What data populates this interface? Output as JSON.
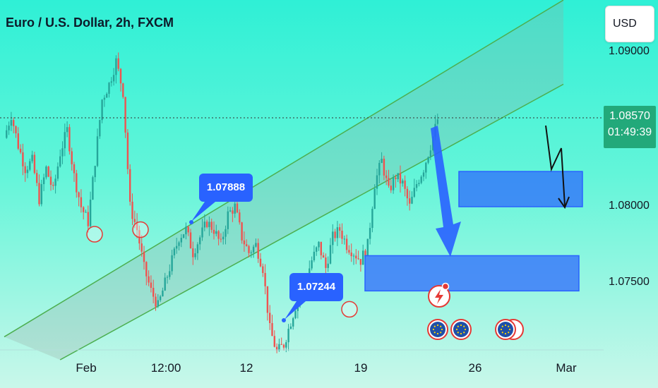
{
  "header": {
    "title": "Euro / U.S. Dollar, 2h, FXCM",
    "currency_label": "USD"
  },
  "price_scale": {
    "ticks": [
      "1.09000",
      "1.08000",
      "1.07500"
    ],
    "current_price": "1.08570",
    "countdown": "01:49:39"
  },
  "time_axis": {
    "ticks": [
      "Feb",
      "12:00",
      "12",
      "19",
      "26",
      "Mar"
    ]
  },
  "annotations": {
    "callout_high": "1.07888",
    "callout_low": "1.07244"
  },
  "colors": {
    "up": "#26a69a",
    "down": "#ef5350",
    "channel": "#4caf50",
    "zone": "#2962ff",
    "price_badge": "#22a97a"
  },
  "icons": [
    "event-flash-icon",
    "eu-flag-icon",
    "eu-flag-icon",
    "eu-flag-icon"
  ],
  "chart_data": {
    "type": "candlestick",
    "symbol": "EUR/USD",
    "timeframe": "2h",
    "ylim": [
      1.07,
      1.0925
    ],
    "close_path": [
      {
        "t": 0,
        "c": 1.0845
      },
      {
        "t": 1,
        "c": 1.086
      },
      {
        "t": 2,
        "c": 1.084
      },
      {
        "t": 3,
        "c": 1.0825
      },
      {
        "t": 4,
        "c": 1.083
      },
      {
        "t": 5,
        "c": 1.0805
      },
      {
        "t": 6,
        "c": 1.0825
      },
      {
        "t": 7,
        "c": 1.081
      },
      {
        "t": 8,
        "c": 1.0835
      },
      {
        "t": 9,
        "c": 1.085
      },
      {
        "t": 10,
        "c": 1.082
      },
      {
        "t": 11,
        "c": 1.08
      },
      {
        "t": 12,
        "c": 1.079
      },
      {
        "t": 13,
        "c": 1.083
      },
      {
        "t": 14,
        "c": 1.087
      },
      {
        "t": 15,
        "c": 1.088
      },
      {
        "t": 16,
        "c": 1.0895
      },
      {
        "t": 17,
        "c": 1.0875
      },
      {
        "t": 18,
        "c": 1.08
      },
      {
        "t": 19,
        "c": 1.0785
      },
      {
        "t": 20,
        "c": 1.076
      },
      {
        "t": 21,
        "c": 1.0745
      },
      {
        "t": 22,
        "c": 1.0735
      },
      {
        "t": 23,
        "c": 1.075
      },
      {
        "t": 24,
        "c": 1.0765
      },
      {
        "t": 25,
        "c": 1.078
      },
      {
        "t": 26,
        "c": 1.0785
      },
      {
        "t": 27,
        "c": 1.077
      },
      {
        "t": 28,
        "c": 1.078
      },
      {
        "t": 29,
        "c": 1.079
      },
      {
        "t": 30,
        "c": 1.0785
      },
      {
        "t": 31,
        "c": 1.0775
      },
      {
        "t": 32,
        "c": 1.0795
      },
      {
        "t": 33,
        "c": 1.08
      },
      {
        "t": 34,
        "c": 1.078
      },
      {
        "t": 35,
        "c": 1.077
      },
      {
        "t": 36,
        "c": 1.0775
      },
      {
        "t": 37,
        "c": 1.076
      },
      {
        "t": 38,
        "c": 1.072
      },
      {
        "t": 39,
        "c": 1.0705
      },
      {
        "t": 40,
        "c": 1.071
      },
      {
        "t": 41,
        "c": 1.0725
      },
      {
        "t": 42,
        "c": 1.074
      },
      {
        "t": 43,
        "c": 1.075
      },
      {
        "t": 44,
        "c": 1.0765
      },
      {
        "t": 45,
        "c": 1.0775
      },
      {
        "t": 46,
        "c": 1.076
      },
      {
        "t": 47,
        "c": 1.078
      },
      {
        "t": 48,
        "c": 1.0785
      },
      {
        "t": 49,
        "c": 1.0775
      },
      {
        "t": 50,
        "c": 1.077
      },
      {
        "t": 51,
        "c": 1.0765
      },
      {
        "t": 52,
        "c": 1.0775
      },
      {
        "t": 53,
        "c": 1.0815
      },
      {
        "t": 54,
        "c": 1.083
      },
      {
        "t": 55,
        "c": 1.081
      },
      {
        "t": 56,
        "c": 1.082
      },
      {
        "t": 57,
        "c": 1.0815
      },
      {
        "t": 58,
        "c": 1.08
      },
      {
        "t": 59,
        "c": 1.0815
      },
      {
        "t": 60,
        "c": 1.0825
      },
      {
        "t": 61,
        "c": 1.084
      },
      {
        "t": 62,
        "c": 1.0857
      }
    ],
    "channel": {
      "upper": [
        {
          "t": 0,
          "p": 1.0715
        },
        {
          "t": 80,
          "p": 1.0935
        }
      ],
      "lower": [
        {
          "t": 8,
          "p": 1.07
        },
        {
          "t": 80,
          "p": 1.088
        }
      ]
    },
    "zones": [
      {
        "p_top": 1.0823,
        "p_bottom": 1.08
      },
      {
        "p_top": 1.0768,
        "p_bottom": 1.0745
      }
    ],
    "circled_lows": [
      1.0782,
      1.0785,
      1.0733
    ],
    "projection": "bearish"
  }
}
